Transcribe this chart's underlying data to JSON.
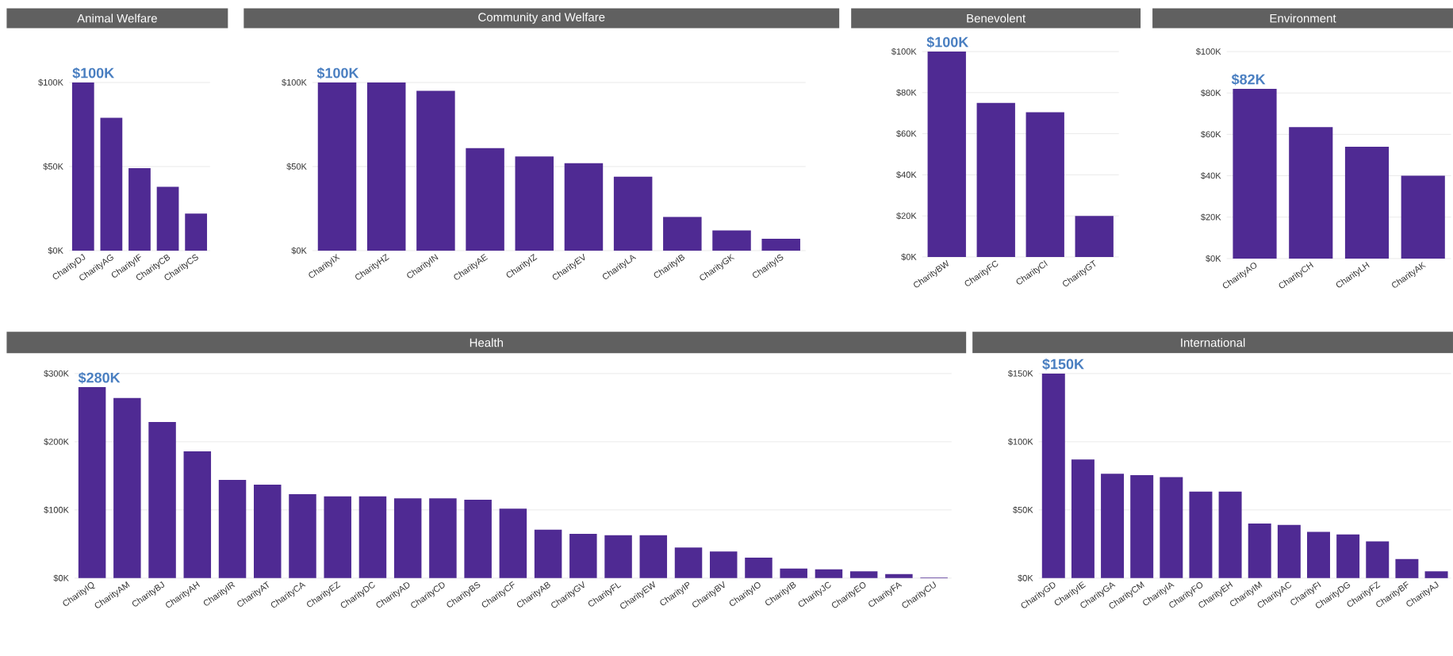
{
  "chart_data": [
    {
      "type": "bar",
      "title": "Animal Welfare",
      "categories": [
        "CharityDJ",
        "CharityAG",
        "CharityIF",
        "CharityCB",
        "CharityCS"
      ],
      "values": [
        100,
        79,
        49,
        38,
        22
      ],
      "value_labels": [
        "$100K",
        null,
        null,
        null,
        null
      ],
      "color": "#4f2a93",
      "ylim": [
        0,
        100
      ],
      "yticks": [
        {
          "value": 0,
          "label": "$0K"
        },
        {
          "value": 50,
          "label": "$50K"
        },
        {
          "value": 100,
          "label": "$100K"
        }
      ],
      "grid": "y"
    },
    {
      "type": "bar",
      "title": "Community and Welfare",
      "categories": [
        "CharityIX",
        "CharityHZ",
        "CharityIN",
        "CharityAE",
        "CharityIZ",
        "CharityEV",
        "CharityLA",
        "CharityIB",
        "CharityGK",
        "CharityIS"
      ],
      "values": [
        100,
        100,
        95,
        61,
        56,
        52,
        44,
        20,
        12,
        7
      ],
      "value_labels": [
        "$100K",
        null,
        null,
        null,
        null,
        null,
        null,
        null,
        null,
        null
      ],
      "color": "#4f2a93",
      "ylim": [
        0,
        100
      ],
      "yticks": [
        {
          "value": 0,
          "label": "$0K"
        },
        {
          "value": 50,
          "label": "$50K"
        },
        {
          "value": 100,
          "label": "$100K"
        }
      ],
      "grid": "y"
    },
    {
      "type": "bar",
      "title": "Benevolent",
      "categories": [
        "CharityBW",
        "CharityFC",
        "CharityCI",
        "CharityGT"
      ],
      "values": [
        100,
        75,
        70.5,
        20
      ],
      "value_labels": [
        "$100K",
        null,
        null,
        null
      ],
      "color": "#4f2a93",
      "ylim": [
        0,
        100
      ],
      "yticks": [
        {
          "value": 0,
          "label": "$0K"
        },
        {
          "value": 20,
          "label": "$20K"
        },
        {
          "value": 40,
          "label": "$40K"
        },
        {
          "value": 60,
          "label": "$60K"
        },
        {
          "value": 80,
          "label": "$80K"
        },
        {
          "value": 100,
          "label": "$100K"
        }
      ],
      "grid": "y"
    },
    {
      "type": "bar",
      "title": "Environment",
      "categories": [
        "CharityAO",
        "CharityCH",
        "CharityLH",
        "CharityAK"
      ],
      "values": [
        82,
        63.5,
        54,
        40
      ],
      "value_labels": [
        "$82K",
        null,
        null,
        null
      ],
      "color": "#4f2a93",
      "ylim": [
        0,
        100
      ],
      "yticks": [
        {
          "value": 0,
          "label": "$0K"
        },
        {
          "value": 20,
          "label": "$20K"
        },
        {
          "value": 40,
          "label": "$40K"
        },
        {
          "value": 60,
          "label": "$60K"
        },
        {
          "value": 80,
          "label": "$80K"
        },
        {
          "value": 100,
          "label": "$100K"
        }
      ],
      "grid": "y"
    },
    {
      "type": "bar",
      "title": "Health",
      "categories": [
        "CharityIQ",
        "CharityAM",
        "CharityBJ",
        "CharityAH",
        "CharityIR",
        "CharityAT",
        "CharityCA",
        "CharityEZ",
        "CharityDC",
        "CharityAD",
        "CharityCD",
        "CharityBS",
        "CharityCF",
        "CharityAB",
        "CharityGV",
        "CharityFL",
        "CharityEW",
        "CharityIP",
        "CharityBV",
        "CharityIO",
        "CharityIB",
        "CharityJC",
        "CharityEO",
        "CharityFA",
        "CharityCU"
      ],
      "values": [
        280,
        264,
        229,
        186,
        144,
        137,
        123,
        120,
        120,
        117,
        117,
        115,
        102,
        71,
        65,
        63,
        63,
        45,
        39,
        30,
        14,
        13,
        10,
        6,
        1
      ],
      "value_labels": [
        "$280K",
        null,
        null,
        null,
        null,
        null,
        null,
        null,
        null,
        null,
        null,
        null,
        null,
        null,
        null,
        null,
        null,
        null,
        null,
        null,
        null,
        null,
        null,
        null,
        null
      ],
      "color": "#4f2a93",
      "ylim": [
        0,
        300
      ],
      "yticks": [
        {
          "value": 0,
          "label": "$0K"
        },
        {
          "value": 100,
          "label": "$100K"
        },
        {
          "value": 200,
          "label": "$200K"
        },
        {
          "value": 300,
          "label": "$300K"
        }
      ],
      "grid": "y"
    },
    {
      "type": "bar",
      "title": "International",
      "categories": [
        "CharityGD",
        "CharityIE",
        "CharityGA",
        "CharityCM",
        "CharityIA",
        "CharityFO",
        "CharityEH",
        "CharityIM",
        "CharityAC",
        "CharityFI",
        "CharityDG",
        "CharityFZ",
        "CharityBF",
        "CharityAJ"
      ],
      "values": [
        150,
        87,
        76.5,
        75.5,
        74,
        63.5,
        63.5,
        40,
        39,
        34,
        32,
        27,
        14,
        5
      ],
      "value_labels": [
        "$150K",
        null,
        null,
        null,
        null,
        null,
        null,
        null,
        null,
        null,
        null,
        null,
        null,
        null
      ],
      "color": "#4f2a93",
      "ylim": [
        0,
        150
      ],
      "yticks": [
        {
          "value": 0,
          "label": "$0K"
        },
        {
          "value": 50,
          "label": "$50K"
        },
        {
          "value": 100,
          "label": "$100K"
        },
        {
          "value": 150,
          "label": "$150K"
        }
      ],
      "grid": "y"
    }
  ]
}
